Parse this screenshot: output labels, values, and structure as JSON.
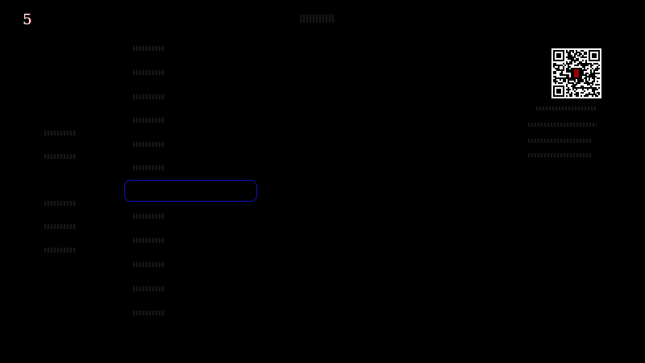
{
  "header": {
    "logo_text": "5"
  },
  "colors": {
    "background": "#000000",
    "focus_border": "#1010c0",
    "logo_accent": "#aa0000"
  },
  "sidebar": {
    "items": [
      {},
      {},
      {},
      {},
      {},
      {}
    ]
  },
  "list": {
    "items": [
      {},
      {},
      {},
      {},
      {},
      {},
      {},
      {},
      {},
      {},
      {},
      {}
    ],
    "focused_index": 6
  },
  "qr": {
    "icon": "qr-code-icon"
  }
}
